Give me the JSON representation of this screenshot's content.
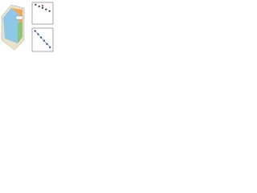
{
  "chart_data": [
    {
      "type": "scatter",
      "x": [
        1,
        2,
        3,
        4,
        5
      ],
      "series": [
        {
          "color": "#333333",
          "values": [
            0.9,
            0.82,
            0.75,
            0.68,
            0.6
          ]
        },
        {
          "color": "#d62728",
          "values": [
            null,
            null,
            0.85,
            null,
            null
          ]
        }
      ],
      "xlim": [
        0,
        6
      ],
      "ylim": [
        0,
        1
      ]
    },
    {
      "type": "scatter",
      "x": [
        1,
        2,
        3,
        4,
        5,
        6
      ],
      "series": [
        {
          "color": "#1f3f9f",
          "values": [
            0.88,
            0.74,
            0.6,
            0.46,
            0.32,
            0.18
          ]
        }
      ],
      "xlim": [
        0,
        7
      ],
      "ylim": [
        0,
        1
      ],
      "fit_line": true
    }
  ]
}
